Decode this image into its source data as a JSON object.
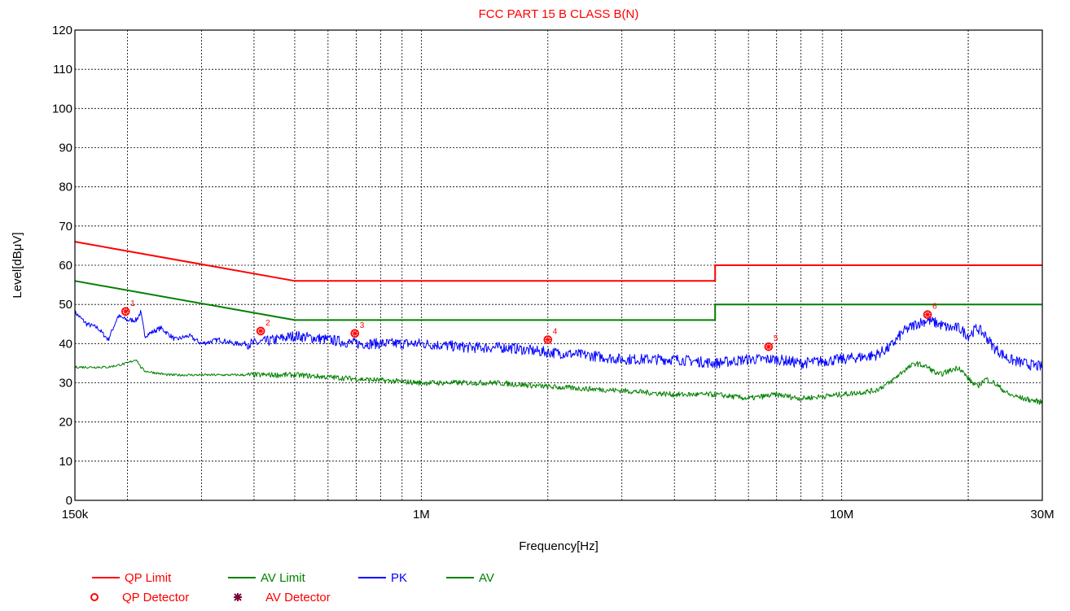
{
  "chart_data": {
    "type": "line",
    "title": "FCC PART 15 B CLASS B(N)",
    "xlabel": "Frequency[Hz]",
    "ylabel": "Level[dBμV]",
    "x_scale": "log",
    "xlim": [
      150000,
      30000000
    ],
    "ylim": [
      0,
      120
    ],
    "grid": true,
    "x_ticks": [
      {
        "value": 150000,
        "label": "150k"
      },
      {
        "value": 1000000,
        "label": "1M"
      },
      {
        "value": 10000000,
        "label": "10M"
      },
      {
        "value": 30000000,
        "label": "30M"
      }
    ],
    "y_ticks": [
      0,
      10,
      20,
      30,
      40,
      50,
      60,
      70,
      80,
      90,
      100,
      110,
      120
    ],
    "legend_position": "bottom-left",
    "series": [
      {
        "name": "QP Limit",
        "color": "#ff0000",
        "x": [
          150000,
          500000,
          500000,
          5000000,
          5000000,
          30000000
        ],
        "y": [
          66,
          56,
          56,
          56,
          60,
          60
        ]
      },
      {
        "name": "AV Limit",
        "color": "#008000",
        "x": [
          150000,
          500000,
          500000,
          5000000,
          5000000,
          30000000
        ],
        "y": [
          56,
          46,
          46,
          46,
          50,
          50
        ]
      },
      {
        "name": "PK",
        "color": "#0000ff",
        "x": [
          150000,
          160000,
          170000,
          180000,
          190000,
          200000,
          210000,
          215000,
          220000,
          240000,
          260000,
          280000,
          300000,
          330000,
          360000,
          400000,
          450000,
          500000,
          600000,
          700000,
          800000,
          1000000,
          1300000,
          1600000,
          1900000,
          2500000,
          3000000,
          4000000,
          5000000,
          6000000,
          7000000,
          8000000,
          10000000,
          12000000,
          13000000,
          14000000,
          15000000,
          16000000,
          17000000,
          18000000,
          19000000,
          20000000,
          21000000,
          22000000,
          23000000,
          25000000,
          27000000,
          30000000
        ],
        "y": [
          48,
          45,
          44,
          41,
          47,
          46,
          46,
          48,
          42,
          44,
          41,
          42,
          40,
          41,
          40,
          40,
          41,
          42,
          41,
          40,
          40,
          40,
          39,
          39,
          38,
          37,
          36,
          36,
          35,
          36,
          36,
          35,
          36,
          37,
          39,
          43,
          45,
          46,
          45,
          44,
          44,
          42,
          44,
          42,
          39,
          36,
          35,
          34
        ]
      },
      {
        "name": "AV",
        "color": "#008000",
        "x": [
          150000,
          180000,
          200000,
          210000,
          215000,
          220000,
          250000,
          300000,
          400000,
          500000,
          700000,
          1000000,
          1500000,
          2000000,
          3000000,
          4000000,
          5000000,
          6000000,
          7000000,
          8000000,
          10000000,
          12000000,
          13000000,
          14000000,
          15000000,
          16000000,
          17000000,
          18000000,
          19000000,
          20000000,
          21000000,
          22000000,
          23000000,
          25000000,
          27000000,
          30000000
        ],
        "y": [
          34,
          34,
          35,
          36,
          34,
          33,
          32,
          32,
          32,
          32,
          31,
          30,
          30,
          29,
          28,
          27,
          27,
          26,
          27,
          26,
          27,
          28,
          30,
          33,
          35,
          34,
          32,
          33,
          34,
          31,
          29,
          31,
          30,
          27,
          26,
          25
        ]
      }
    ],
    "markers": [
      {
        "label": "1",
        "x": 198000,
        "y": 48.2
      },
      {
        "label": "2",
        "x": 415000,
        "y": 43.2
      },
      {
        "label": "3",
        "x": 695000,
        "y": 42.6
      },
      {
        "label": "4",
        "x": 2000000,
        "y": 41.0
      },
      {
        "label": "5",
        "x": 6700000,
        "y": 39.2
      },
      {
        "label": "6",
        "x": 16000000,
        "y": 47.4
      }
    ],
    "legend": [
      {
        "label": "QP Limit",
        "symbol": "line",
        "color": "#ff0000"
      },
      {
        "label": "AV Limit",
        "symbol": "line",
        "color": "#008000"
      },
      {
        "label": "PK",
        "symbol": "line",
        "color": "#0000ff"
      },
      {
        "label": "AV",
        "symbol": "line",
        "color": "#008000"
      },
      {
        "label": "QP Detector",
        "symbol": "o",
        "color": "#ff0000"
      },
      {
        "label": "AV Detector",
        "symbol": "✸",
        "color": "#800040"
      }
    ]
  }
}
